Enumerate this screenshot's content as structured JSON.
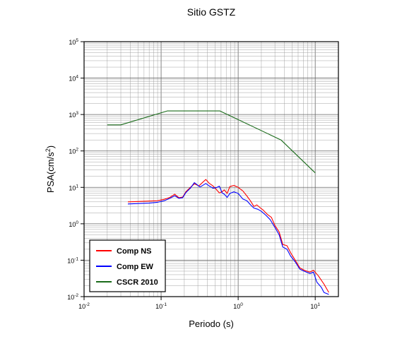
{
  "chart_data": {
    "type": "line",
    "title": "Sitio GSTZ",
    "xlabel": "Periodo (s)",
    "ylabel_main": "PSA(cm/s",
    "ylabel_sup": "2",
    "ylabel_end": ")",
    "x_scale": "log",
    "y_scale": "log",
    "xlim": [
      0.01,
      20
    ],
    "ylim": [
      0.01,
      100000
    ],
    "x_ticks": [
      {
        "value": 0.01,
        "base": "10",
        "exp": "-2"
      },
      {
        "value": 0.1,
        "base": "10",
        "exp": "-1"
      },
      {
        "value": 1,
        "base": "10",
        "exp": "0"
      },
      {
        "value": 10,
        "base": "10",
        "exp": "1"
      }
    ],
    "y_ticks": [
      {
        "value": 0.01,
        "base": "10",
        "exp": "-2"
      },
      {
        "value": 0.1,
        "base": "10",
        "exp": "-1"
      },
      {
        "value": 1,
        "base": "10",
        "exp": "0"
      },
      {
        "value": 10,
        "base": "10",
        "exp": "1"
      },
      {
        "value": 100,
        "base": "10",
        "exp": "2"
      },
      {
        "value": 1000,
        "base": "10",
        "exp": "3"
      },
      {
        "value": 10000,
        "base": "10",
        "exp": "4"
      },
      {
        "value": 100000,
        "base": "10",
        "exp": "5"
      }
    ],
    "grid": true,
    "legend_position": "bottom-left",
    "series": [
      {
        "name": "Comp NS",
        "color": "#ff0000",
        "points": [
          [
            0.037,
            4.0
          ],
          [
            0.05,
            4.1
          ],
          [
            0.07,
            4.2
          ],
          [
            0.09,
            4.3
          ],
          [
            0.11,
            4.7
          ],
          [
            0.13,
            5.3
          ],
          [
            0.15,
            6.5
          ],
          [
            0.17,
            5.2
          ],
          [
            0.19,
            5.4
          ],
          [
            0.21,
            7.6
          ],
          [
            0.24,
            10.0
          ],
          [
            0.27,
            12.5
          ],
          [
            0.31,
            11.0
          ],
          [
            0.35,
            14.0
          ],
          [
            0.38,
            16.5
          ],
          [
            0.42,
            13.0
          ],
          [
            0.47,
            11.0
          ],
          [
            0.52,
            8.8
          ],
          [
            0.57,
            7.0
          ],
          [
            0.62,
            7.6
          ],
          [
            0.66,
            8.5
          ],
          [
            0.72,
            6.8
          ],
          [
            0.78,
            10.5
          ],
          [
            0.88,
            11.3
          ],
          [
            1.0,
            10.0
          ],
          [
            1.15,
            8.0
          ],
          [
            1.3,
            5.8
          ],
          [
            1.45,
            4.2
          ],
          [
            1.6,
            3.0
          ],
          [
            1.75,
            3.3
          ],
          [
            1.95,
            2.7
          ],
          [
            2.1,
            2.4
          ],
          [
            2.4,
            1.8
          ],
          [
            2.7,
            1.5
          ],
          [
            3.0,
            0.9
          ],
          [
            3.4,
            0.6
          ],
          [
            3.8,
            0.27
          ],
          [
            4.3,
            0.25
          ],
          [
            4.8,
            0.16
          ],
          [
            5.5,
            0.1
          ],
          [
            6.3,
            0.062
          ],
          [
            7.2,
            0.053
          ],
          [
            8.5,
            0.047
          ],
          [
            9.5,
            0.053
          ],
          [
            11.0,
            0.037
          ],
          [
            13.0,
            0.022
          ],
          [
            15.0,
            0.013
          ]
        ]
      },
      {
        "name": "Comp EW",
        "color": "#0000ff",
        "points": [
          [
            0.037,
            3.5
          ],
          [
            0.05,
            3.6
          ],
          [
            0.07,
            3.7
          ],
          [
            0.09,
            3.9
          ],
          [
            0.11,
            4.3
          ],
          [
            0.13,
            5.0
          ],
          [
            0.15,
            5.9
          ],
          [
            0.17,
            5.0
          ],
          [
            0.19,
            5.2
          ],
          [
            0.21,
            7.2
          ],
          [
            0.24,
            9.5
          ],
          [
            0.27,
            13.5
          ],
          [
            0.29,
            12.0
          ],
          [
            0.32,
            10.2
          ],
          [
            0.35,
            11.5
          ],
          [
            0.38,
            12.8
          ],
          [
            0.42,
            11.0
          ],
          [
            0.47,
            9.5
          ],
          [
            0.52,
            9.8
          ],
          [
            0.57,
            10.8
          ],
          [
            0.62,
            7.0
          ],
          [
            0.66,
            6.5
          ],
          [
            0.72,
            5.3
          ],
          [
            0.78,
            6.8
          ],
          [
            0.88,
            7.5
          ],
          [
            1.0,
            6.8
          ],
          [
            1.15,
            4.8
          ],
          [
            1.3,
            4.3
          ],
          [
            1.45,
            3.3
          ],
          [
            1.6,
            2.7
          ],
          [
            1.8,
            2.5
          ],
          [
            2.0,
            2.2
          ],
          [
            2.3,
            1.7
          ],
          [
            2.6,
            1.3
          ],
          [
            3.0,
            0.8
          ],
          [
            3.4,
            0.5
          ],
          [
            3.8,
            0.23
          ],
          [
            4.3,
            0.2
          ],
          [
            4.8,
            0.13
          ],
          [
            5.5,
            0.09
          ],
          [
            6.3,
            0.057
          ],
          [
            7.2,
            0.05
          ],
          [
            8.5,
            0.043
          ],
          [
            9.5,
            0.047
          ],
          [
            10.5,
            0.025
          ],
          [
            12.0,
            0.018
          ],
          [
            13.0,
            0.013
          ],
          [
            15.0,
            0.0115
          ]
        ]
      },
      {
        "name": "CSCR 2010",
        "color": "#1a6b1a",
        "points": [
          [
            0.02,
            520
          ],
          [
            0.03,
            520
          ],
          [
            0.12,
            1250
          ],
          [
            0.58,
            1250
          ],
          [
            3.6,
            200
          ],
          [
            10.0,
            25
          ]
        ]
      }
    ]
  }
}
